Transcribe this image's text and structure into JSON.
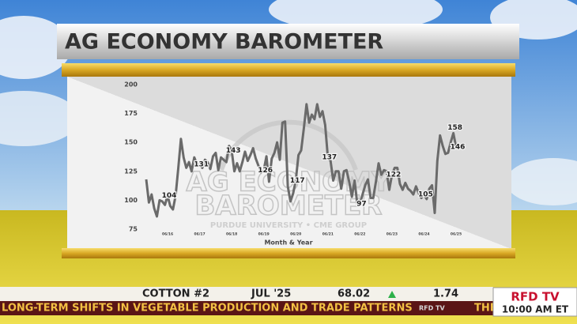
{
  "header": {
    "title": "AG ECONOMY BAROMETER"
  },
  "watermark": {
    "line1": "AG ECONOMY",
    "line2": "BAROMETER",
    "line3": "PURDUE UNIVERSITY • CME GROUP"
  },
  "chart_data": {
    "type": "line",
    "xlabel": "Month & Year",
    "color": "#6a6a6a",
    "ylim": [
      75,
      200
    ],
    "yticks": [
      75,
      100,
      125,
      150,
      175,
      200
    ],
    "grid": false,
    "categories": [
      null,
      null,
      null,
      null,
      null,
      null,
      null,
      null,
      "06/16",
      null,
      null,
      null,
      null,
      null,
      null,
      null,
      null,
      null,
      null,
      null,
      "06/17",
      null,
      null,
      null,
      null,
      null,
      null,
      null,
      null,
      null,
      null,
      null,
      "06/18",
      null,
      null,
      null,
      null,
      null,
      null,
      null,
      null,
      null,
      null,
      null,
      "06/19",
      null,
      null,
      null,
      null,
      null,
      null,
      null,
      null,
      null,
      null,
      null,
      "06/20",
      null,
      null,
      null,
      null,
      null,
      null,
      null,
      null,
      null,
      null,
      null,
      "06/21",
      null,
      null,
      null,
      null,
      null,
      null,
      null,
      null,
      null,
      null,
      null,
      "06/22",
      null,
      null,
      null,
      null,
      null,
      null,
      null,
      null,
      null,
      null,
      null,
      "06/23",
      null,
      null,
      null,
      null,
      null,
      null,
      null,
      null,
      null,
      null,
      null,
      "06/24",
      null,
      null,
      null,
      null,
      null,
      null,
      null,
      null,
      null,
      null,
      null,
      "06/25"
    ],
    "values": [
      118,
      98,
      105,
      93,
      86,
      100,
      99,
      96,
      104,
      95,
      92,
      104,
      128,
      153,
      137,
      128,
      133,
      125,
      137,
      131,
      131,
      128,
      135,
      133,
      127,
      138,
      141,
      126,
      137,
      135,
      133,
      147,
      143,
      125,
      132,
      125,
      133,
      142,
      134,
      139,
      145,
      136,
      130,
      124,
      126,
      138,
      116,
      136,
      141,
      150,
      135,
      167,
      168,
      112,
      99,
      106,
      117,
      139,
      143,
      162,
      183,
      167,
      174,
      170,
      183,
      172,
      177,
      165,
      137,
      134,
      117,
      125,
      125,
      110,
      125,
      126,
      116,
      103,
      117,
      97,
      97,
      105,
      113,
      118,
      102,
      102,
      116,
      132,
      122,
      126,
      125,
      109,
      122,
      128,
      128,
      114,
      109,
      115,
      110,
      108,
      105,
      112,
      106,
      102,
      105,
      101,
      110,
      113,
      89,
      134,
      156,
      147,
      140,
      141,
      150,
      158,
      146
    ],
    "value_labels": [
      null,
      null,
      null,
      null,
      null,
      null,
      null,
      null,
      "104",
      null,
      null,
      null,
      null,
      null,
      null,
      null,
      null,
      null,
      null,
      null,
      "131",
      null,
      null,
      null,
      null,
      null,
      null,
      null,
      null,
      null,
      null,
      null,
      "143",
      null,
      null,
      null,
      null,
      null,
      null,
      null,
      null,
      null,
      null,
      null,
      "126",
      null,
      null,
      null,
      null,
      null,
      null,
      null,
      null,
      null,
      null,
      null,
      "117",
      null,
      null,
      null,
      null,
      null,
      null,
      null,
      null,
      null,
      null,
      null,
      "137",
      null,
      null,
      null,
      null,
      null,
      null,
      null,
      null,
      null,
      null,
      null,
      "97",
      null,
      null,
      null,
      null,
      null,
      null,
      null,
      null,
      null,
      null,
      null,
      "122",
      null,
      null,
      null,
      null,
      null,
      null,
      null,
      null,
      null,
      null,
      null,
      "105",
      null,
      null,
      null,
      null,
      null,
      null,
      null,
      null,
      null,
      null,
      "158",
      "146"
    ]
  },
  "ticker": {
    "commodity": "COTTON #2",
    "contract": "JUL '25",
    "price": "68.02",
    "change": "1.74"
  },
  "crawl": {
    "headline": "LONG-TERM SHIFTS IN VEGETABLE PRODUCTION AND TRADE PATTERNS",
    "next": "THE",
    "bug": "RFD TV"
  },
  "logo": {
    "name": "RFD TV",
    "time": "10:00 AM ET"
  }
}
